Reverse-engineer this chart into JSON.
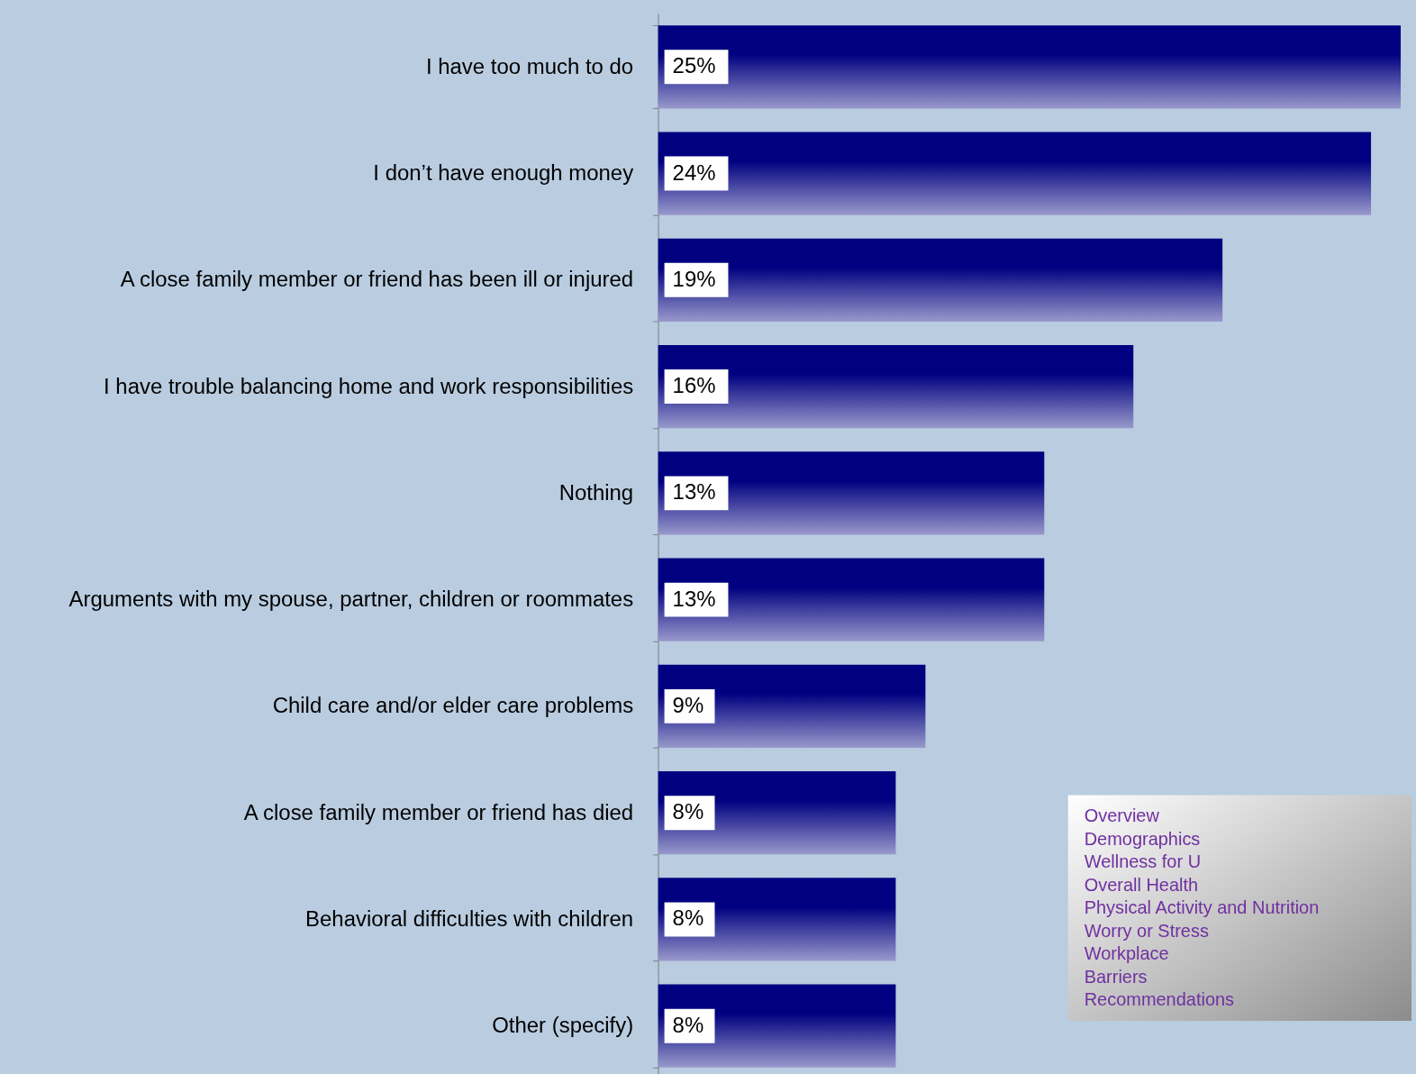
{
  "chart_data": {
    "type": "bar",
    "orientation": "horizontal",
    "categories": [
      "I have too much to do",
      "I don’t have enough money",
      "A close family member or friend has been ill or injured",
      "I have trouble balancing home and work responsibilities",
      "Nothing",
      "Arguments with my spouse, partner, children or roommates",
      "Child care and/or elder care problems",
      "A close family member or friend has died",
      "Behavioral difficulties with children",
      "Other (specify)"
    ],
    "values": [
      25,
      24,
      19,
      16,
      13,
      13,
      9,
      8,
      8,
      8
    ],
    "value_labels": [
      "25%",
      "24%",
      "19%",
      "16%",
      "13%",
      "13%",
      "9%",
      "8%",
      "8%",
      "8%"
    ],
    "color": "#000080",
    "annotations": [
      "Overview",
      "Demographics",
      "Wellness for U",
      "Overall Health",
      "Physical Activity and Nutrition",
      "Worry or Stress",
      "Workplace",
      "Barriers",
      "Recommendations"
    ]
  }
}
